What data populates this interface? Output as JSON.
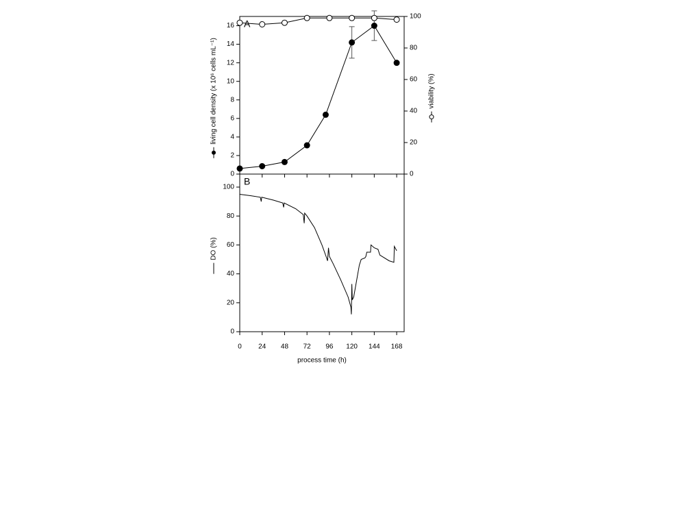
{
  "chart_data": [
    {
      "type": "line",
      "panel_label": "A",
      "ylabel": "living cell density (x 10⁶ cells mL⁻¹)",
      "y2label": "viability (%)",
      "xlim": [
        0,
        176
      ],
      "ylim": [
        0,
        17
      ],
      "yticks": [
        0,
        2,
        4,
        6,
        8,
        10,
        12,
        14,
        16
      ],
      "y2lim": [
        0,
        100
      ],
      "y2ticks": [
        0,
        20,
        40,
        60,
        80,
        100
      ],
      "series": [
        {
          "name": "living cell density",
          "color": "#000000",
          "marker": "filled",
          "x": [
            0,
            24,
            48,
            72,
            92,
            120,
            144,
            168
          ],
          "values": [
            0.6,
            0.85,
            1.3,
            3.1,
            6.4,
            14.2,
            16,
            12
          ],
          "errors": [
            null,
            null,
            null,
            null,
            null,
            1.7,
            1.6,
            null
          ]
        },
        {
          "name": "viability",
          "color": "#000000",
          "marker": "open",
          "axis": "y2",
          "x": [
            0,
            24,
            48,
            72,
            96,
            120,
            144,
            168
          ],
          "values": [
            96,
            95,
            96,
            99,
            99,
            99,
            99,
            98
          ]
        }
      ]
    },
    {
      "type": "line",
      "panel_label": "B",
      "xlabel": "process time (h)",
      "ylabel": "DO (%)",
      "xlim": [
        0,
        176
      ],
      "xticks": [
        0,
        24,
        48,
        72,
        96,
        120,
        144,
        168
      ],
      "ylim": [
        0,
        109
      ],
      "yticks": [
        0,
        20,
        40,
        60,
        80,
        100
      ],
      "series": [
        {
          "name": "DO",
          "color": "#000000",
          "marker": "none",
          "x": [
            0,
            12,
            22,
            23,
            23.5,
            36,
            46,
            47,
            47.5,
            60,
            68,
            69,
            69.5,
            72,
            80,
            88,
            93,
            94,
            95,
            96,
            100,
            108,
            116,
            119,
            119.5,
            120,
            120.5,
            122,
            125,
            128,
            130,
            134,
            135,
            136,
            140,
            140.5,
            144,
            148,
            150,
            160,
            165,
            165.5,
            168
          ],
          "values": [
            95,
            94,
            93,
            90,
            93,
            91,
            89,
            86,
            89,
            85,
            81,
            75,
            82,
            80,
            72,
            60,
            51,
            49,
            58,
            52,
            47,
            36,
            24,
            17,
            12,
            33,
            22,
            24,
            35,
            46,
            50,
            51,
            52,
            55,
            55,
            60,
            58,
            57,
            53,
            49,
            48,
            59,
            56
          ]
        }
      ]
    }
  ]
}
